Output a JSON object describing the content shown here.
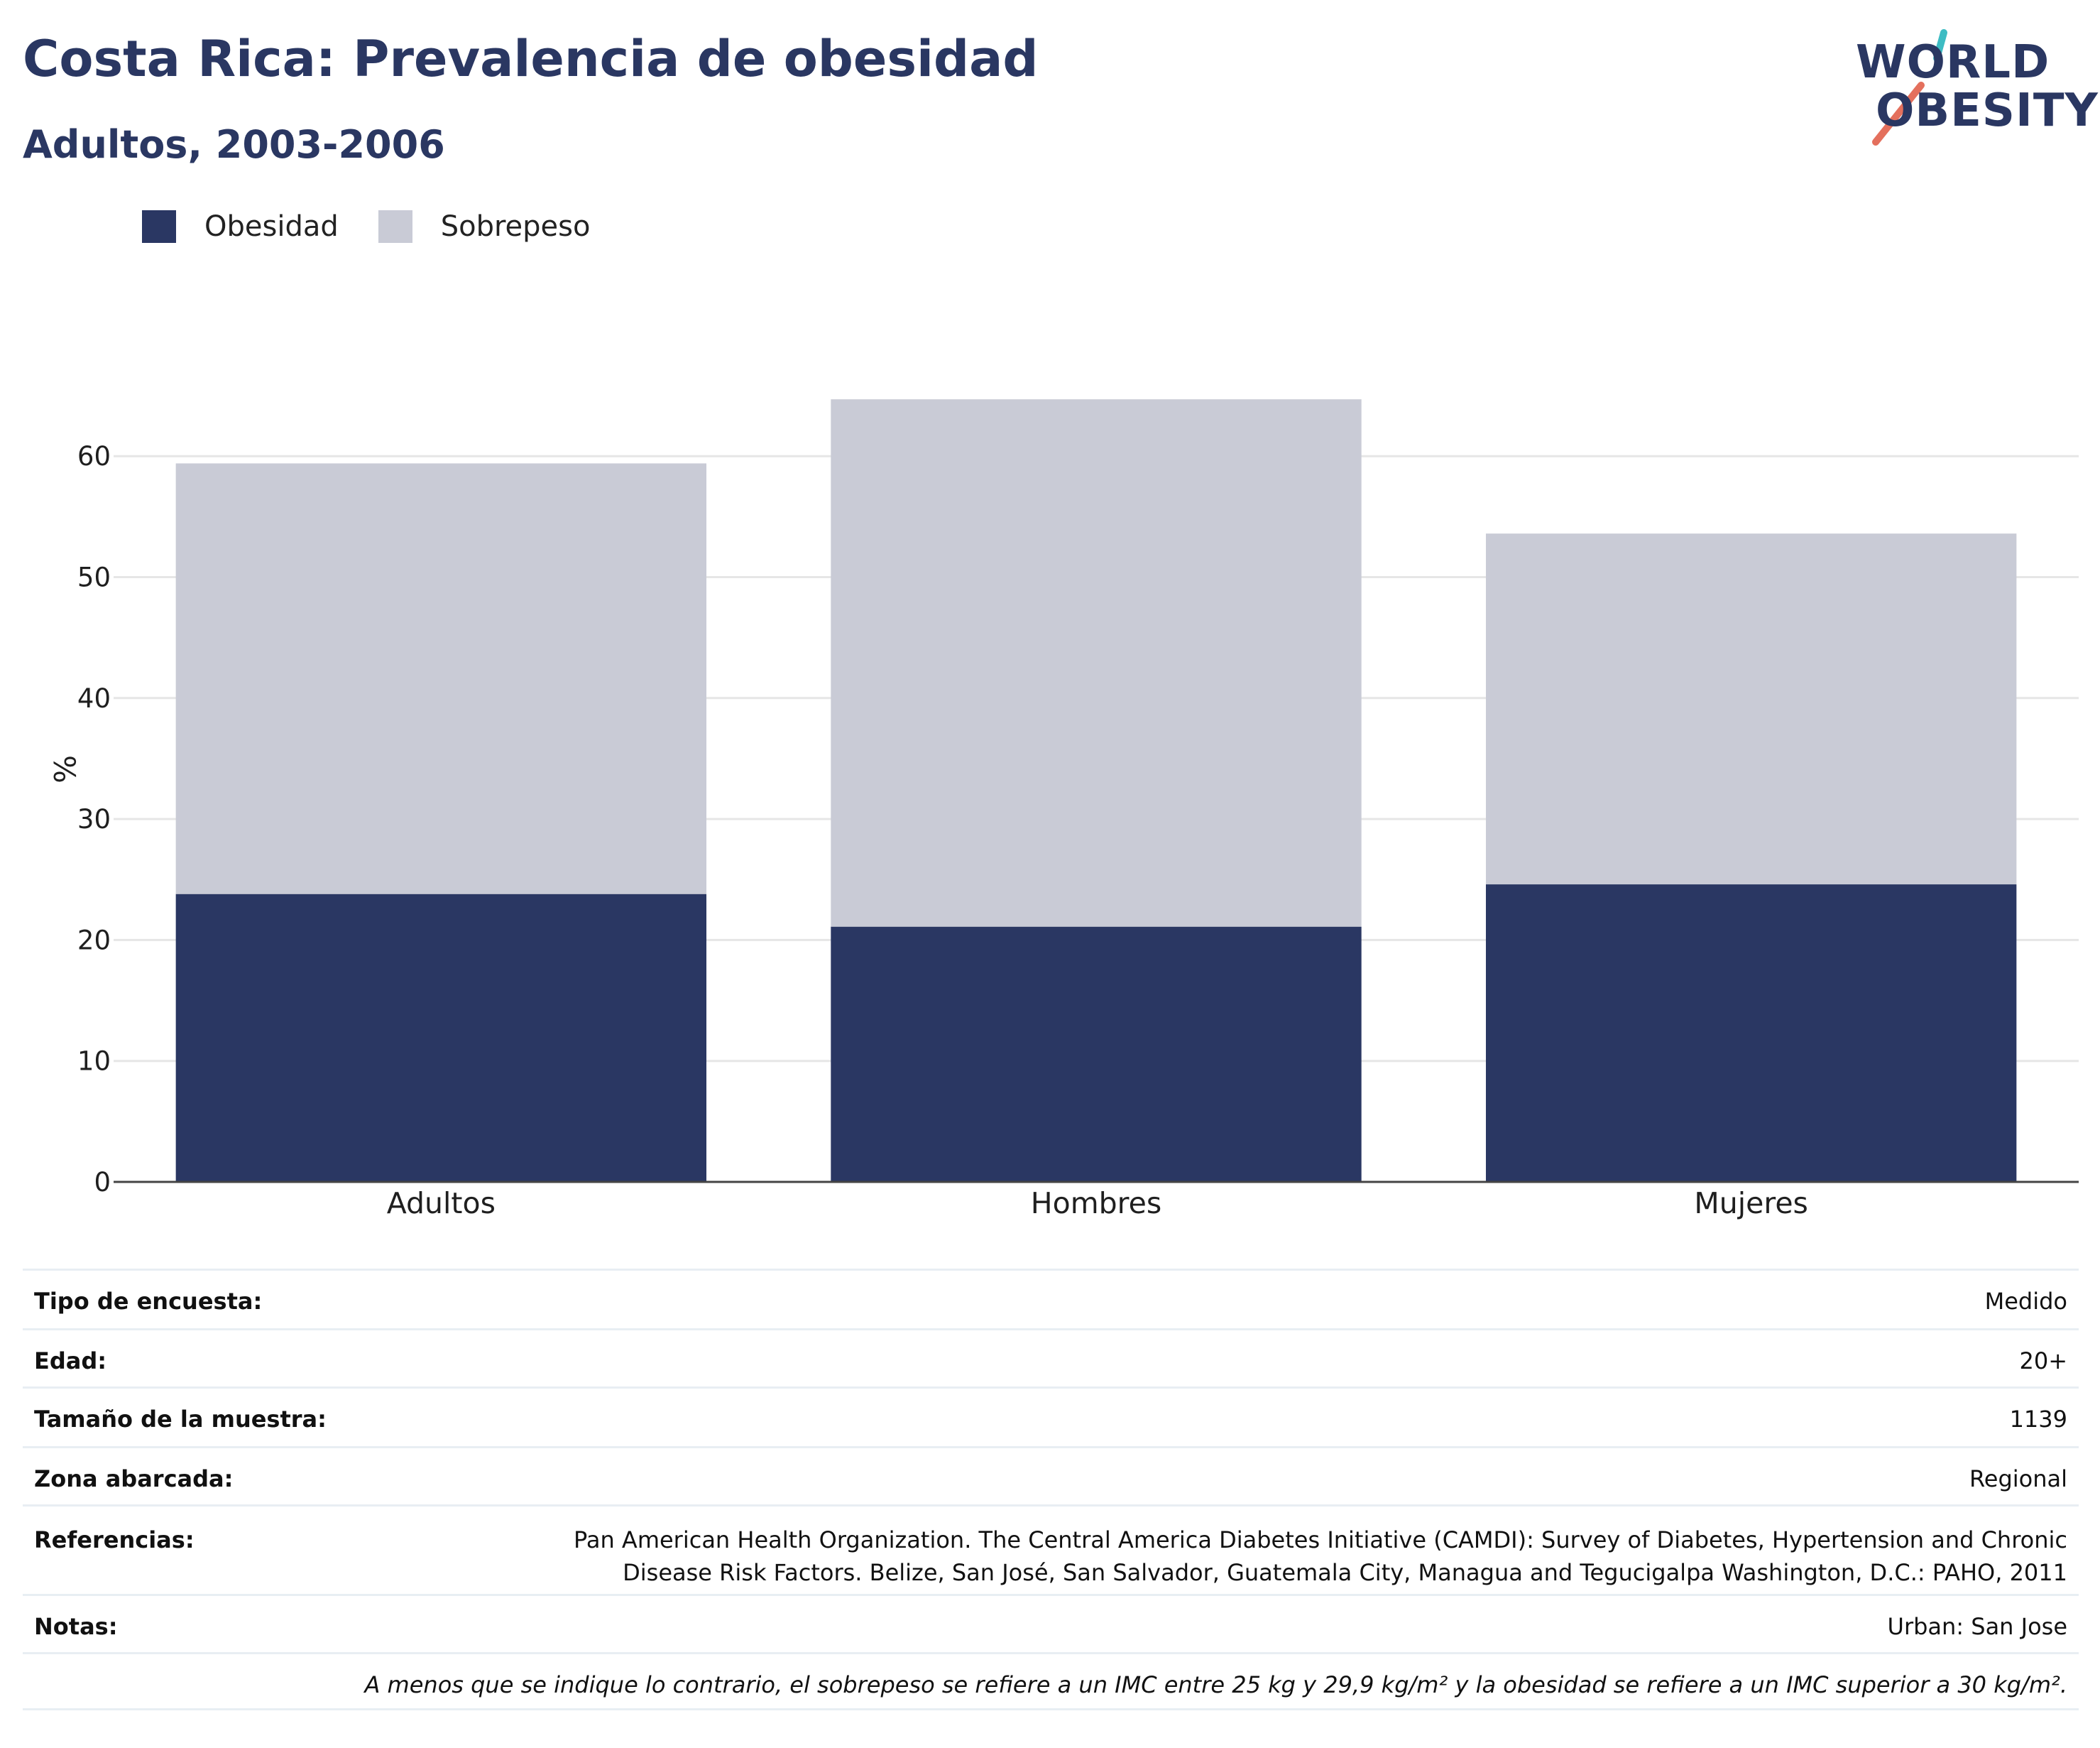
{
  "header": {
    "title": "Costa Rica: Prevalencia de obesidad",
    "subtitle": "Adultos, 2003-2006"
  },
  "logo": {
    "line1": "WORLD",
    "line2": "OBESITY"
  },
  "colors": {
    "obesity": "#2a3763",
    "overweight": "#c9cbd6",
    "accent_teal": "#3dbcc3",
    "accent_coral": "#e4705d"
  },
  "chart_data": {
    "type": "bar",
    "stacked": true,
    "categories": [
      "Adultos",
      "Hombres",
      "Mujeres"
    ],
    "series": [
      {
        "name": "Obesidad",
        "values": [
          23.8,
          21.1,
          24.6
        ]
      },
      {
        "name": "Sobrepeso",
        "values": [
          35.6,
          43.6,
          29.0
        ]
      }
    ],
    "ylabel": "%",
    "xlabel": "",
    "ylim": [
      0,
      70
    ],
    "yticks": [
      0,
      10,
      20,
      30,
      40,
      50,
      60
    ],
    "grid": true,
    "legend": "top-left"
  },
  "info": {
    "survey_type": {
      "label": "Tipo de encuesta:",
      "value": "Medido"
    },
    "age": {
      "label": "Edad:",
      "value": "20+"
    },
    "sample_size": {
      "label": "Tamaño de la muestra:",
      "value": "1139"
    },
    "area": {
      "label": "Zona abarcada:",
      "value": "Regional"
    },
    "references": {
      "label": "Referencias:",
      "value_line1": "Pan American Health Organization. The Central America Diabetes Initiative (CAMDI): Survey of Diabetes, Hypertension and Chronic",
      "value_line2": "Disease Risk Factors. Belize, San José, San Salvador, Guatemala City, Managua and Tegucigalpa Washington, D.C.: PAHO, 2011"
    },
    "notes": {
      "label": "Notas:",
      "value": "Urban: San Jose"
    },
    "footnote": "A menos que se indique lo contrario, el sobrepeso se refiere a un IMC entre 25 kg y 29,9 kg/m² y la obesidad se refiere a un IMC superior a 30 kg/m²."
  }
}
